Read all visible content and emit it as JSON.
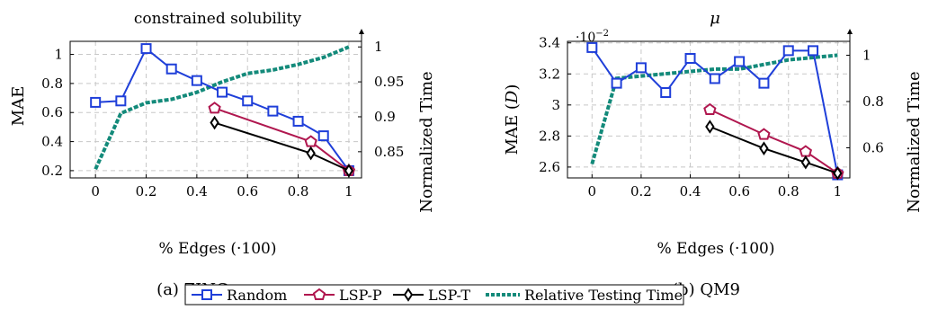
{
  "colors": {
    "random": "#1f3fd9",
    "lspp": "#b0174f",
    "lspt": "#000000",
    "time": "#138a7a",
    "grid": "#c8c8c8"
  },
  "legend": {
    "random": "Random",
    "lspp": "LSP-P",
    "lspt": "LSP-T",
    "time": "Relative Testing Time"
  },
  "chart_data": [
    {
      "type": "line",
      "title": "constrained solubility",
      "caption": "(a) ZINC",
      "xlabel": "% Edges (·100)",
      "ylabel": "MAE",
      "y2label": "Normalized Time",
      "xlim": [
        -0.1,
        1.05
      ],
      "ylim": [
        0.15,
        1.09
      ],
      "y2lim": [
        0.8125,
        1.008
      ],
      "xticks": [
        "0",
        "0.2",
        "0.4",
        "0.6",
        "0.8",
        "1"
      ],
      "yticks": [
        "0.2",
        "0.4",
        "0.6",
        "0.8",
        "1"
      ],
      "y2ticks": [
        "0.85",
        "0.9",
        "0.95",
        "1"
      ],
      "grid": true,
      "series": [
        {
          "name": "Random",
          "x": [
            0,
            0.1,
            0.2,
            0.3,
            0.4,
            0.5,
            0.6,
            0.7,
            0.8,
            0.9,
            1.0
          ],
          "y": [
            0.67,
            0.68,
            1.04,
            0.9,
            0.82,
            0.74,
            0.68,
            0.61,
            0.54,
            0.44,
            0.2
          ]
        },
        {
          "name": "LSP-P",
          "x": [
            0.47,
            0.85,
            1.0
          ],
          "y": [
            0.63,
            0.4,
            0.2
          ]
        },
        {
          "name": "LSP-T",
          "x": [
            0.47,
            0.85,
            1.0
          ],
          "y": [
            0.53,
            0.32,
            0.2
          ]
        }
      ],
      "secondary_series": {
        "name": "Relative Testing Time",
        "x": [
          0,
          0.1,
          0.2,
          0.3,
          0.4,
          0.5,
          0.6,
          0.7,
          0.8,
          0.9,
          1.0
        ],
        "y": [
          0.825,
          0.905,
          0.92,
          0.925,
          0.935,
          0.95,
          0.962,
          0.967,
          0.975,
          0.985,
          1.0
        ]
      }
    },
    {
      "type": "line",
      "title": "μ",
      "caption": "(b) QM9",
      "xlabel": "% Edges (·100)",
      "ylabel": "MAE (D)",
      "y2label": "Normalized Time",
      "scale_label": "·10",
      "scale_exp": "−2",
      "xlim": [
        -0.1,
        1.05
      ],
      "ylim": [
        2.53,
        3.41
      ],
      "y2lim": [
        0.47,
        1.06
      ],
      "xticks": [
        "0",
        "0.2",
        "0.4",
        "0.6",
        "0.8",
        "1"
      ],
      "yticks": [
        "2.6",
        "2.8",
        "3",
        "3.2",
        "3.4"
      ],
      "y2ticks": [
        "0.6",
        "0.8",
        "1"
      ],
      "grid": true,
      "series": [
        {
          "name": "Random",
          "x": [
            0,
            0.1,
            0.2,
            0.3,
            0.4,
            0.5,
            0.6,
            0.7,
            0.8,
            0.9,
            1.0
          ],
          "y": [
            3.37,
            3.14,
            3.24,
            3.08,
            3.3,
            3.17,
            3.28,
            3.14,
            3.35,
            3.35,
            2.55
          ]
        },
        {
          "name": "LSP-P",
          "x": [
            0.48,
            0.7,
            0.87,
            1.0
          ],
          "y": [
            2.97,
            2.81,
            2.7,
            2.56
          ]
        },
        {
          "name": "LSP-T",
          "x": [
            0.48,
            0.7,
            0.87,
            1.0
          ],
          "y": [
            2.86,
            2.72,
            2.63,
            2.56
          ]
        }
      ],
      "secondary_series": {
        "name": "Relative Testing Time",
        "x": [
          0,
          0.1,
          0.2,
          0.3,
          0.4,
          0.5,
          0.6,
          0.7,
          0.8,
          0.9,
          1.0
        ],
        "y": [
          0.53,
          0.9,
          0.91,
          0.92,
          0.93,
          0.94,
          0.94,
          0.96,
          0.98,
          0.99,
          1.0
        ]
      }
    }
  ]
}
